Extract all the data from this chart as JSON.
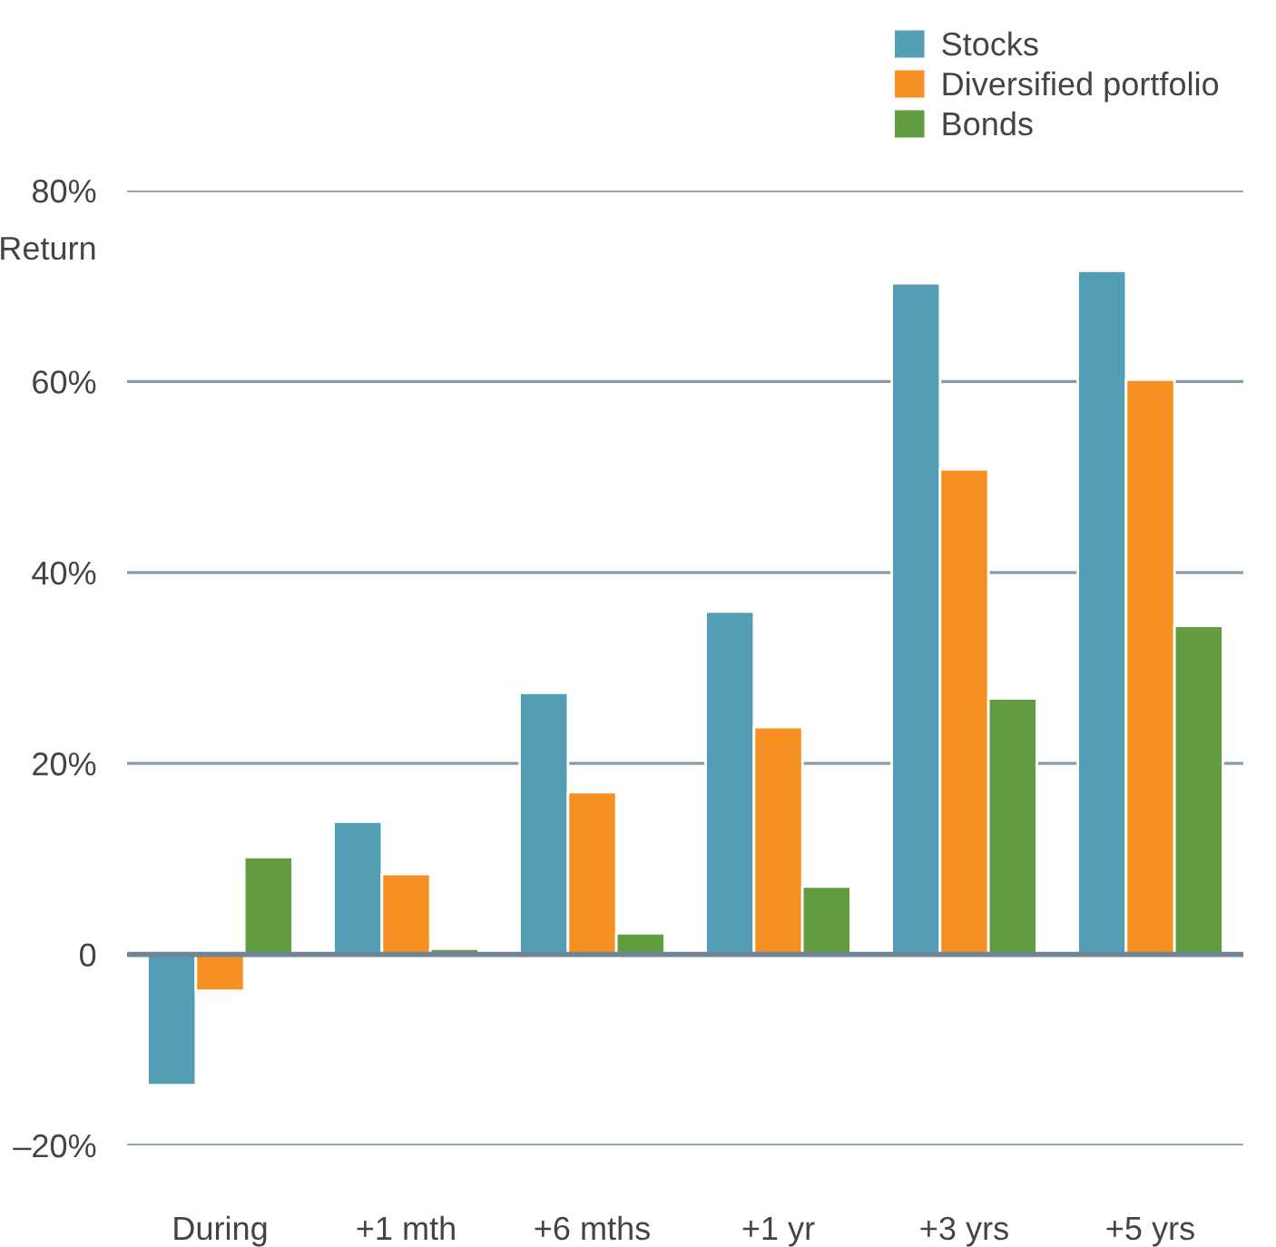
{
  "chart_data": {
    "type": "bar",
    "ylabel": "Return",
    "categories": [
      "During",
      "+1 mth",
      "+6 mths",
      "+1 yr",
      "+3 yrs",
      "+5 yrs"
    ],
    "series": [
      {
        "name": "Stocks",
        "color": "#539eb5",
        "values": [
          -13.7,
          13.9,
          27.4,
          35.9,
          70.3,
          71.6
        ]
      },
      {
        "name": "Diversified portfolio",
        "color": "#f69022",
        "values": [
          -3.8,
          8.4,
          17.0,
          23.8,
          50.8,
          60.2
        ]
      },
      {
        "name": "Bonds",
        "color": "#629c40",
        "values": [
          10.2,
          0.6,
          2.2,
          7.1,
          26.8,
          34.4
        ]
      }
    ],
    "ylim": [
      -20,
      80
    ],
    "yticks": [
      {
        "value": -20,
        "label": "–20%"
      },
      {
        "value": 0,
        "label": "0"
      },
      {
        "value": 20,
        "label": "20%"
      },
      {
        "value": 40,
        "label": "40%"
      },
      {
        "value": 60,
        "label": "60%"
      },
      {
        "value": 80,
        "label": "80%"
      }
    ],
    "grid": "y",
    "legend": "top right"
  }
}
